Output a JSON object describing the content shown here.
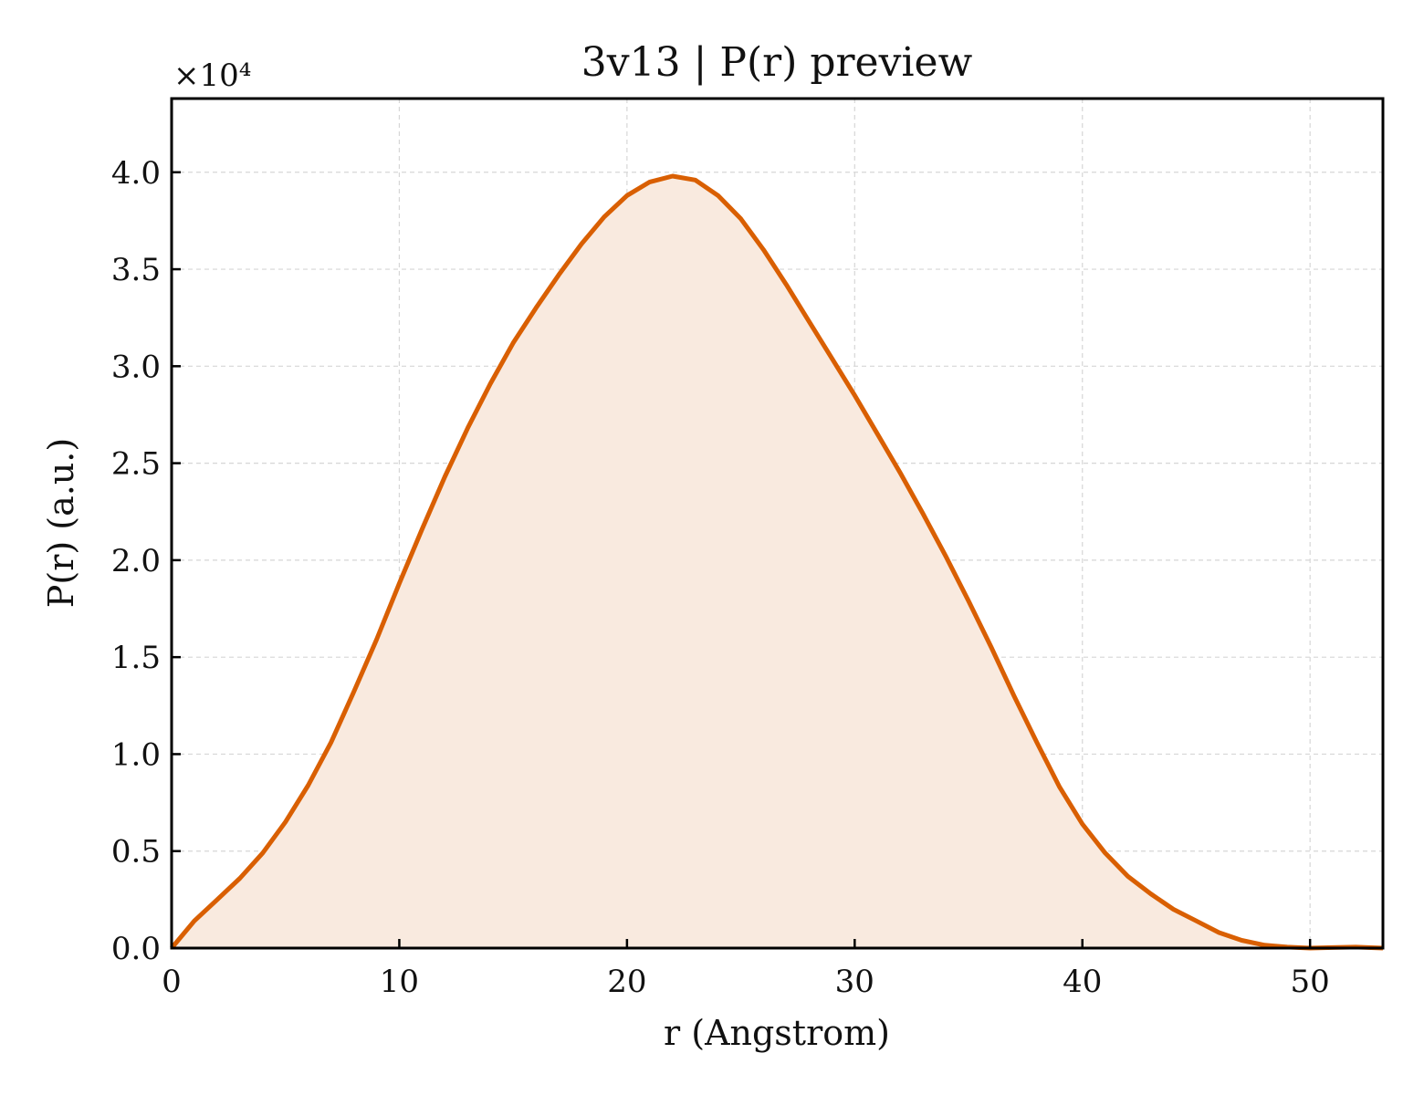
{
  "chart_data": {
    "type": "area",
    "title": "3v13 | P(r) preview",
    "xlabel": "r (Angstrom)",
    "ylabel": "P(r) (a.u.)",
    "y_multiplier_label": "×10⁴",
    "xlim": [
      0,
      53.2
    ],
    "ylim": [
      0,
      4.38
    ],
    "x_ticks": [
      0,
      10,
      20,
      30,
      40,
      50
    ],
    "x_tick_labels": [
      "0",
      "10",
      "20",
      "30",
      "40",
      "50"
    ],
    "y_ticks": [
      0,
      0.5,
      1.0,
      1.5,
      2.0,
      2.5,
      3.0,
      3.5,
      4.0
    ],
    "y_tick_labels": [
      "0.0",
      "0.5",
      "1.0",
      "1.5",
      "2.0",
      "2.5",
      "3.0",
      "3.5",
      "4.0"
    ],
    "grid": true,
    "line_color": "#d95f02",
    "fill_color": "#f9eadf",
    "series": [
      {
        "x": [
          0,
          1,
          2,
          3,
          4,
          5,
          6,
          7,
          8,
          9,
          10,
          11,
          12,
          13,
          14,
          15,
          16,
          17,
          18,
          19,
          20,
          21,
          22,
          23,
          24,
          25,
          26,
          27,
          28,
          29,
          30,
          31,
          32,
          33,
          34,
          35,
          36,
          37,
          38,
          39,
          40,
          41,
          42,
          43,
          44,
          45,
          46,
          47,
          48,
          49,
          50,
          51,
          52,
          53.2
        ],
        "y": [
          0.0,
          0.14,
          0.25,
          0.36,
          0.49,
          0.65,
          0.84,
          1.06,
          1.32,
          1.59,
          1.88,
          2.16,
          2.43,
          2.68,
          2.91,
          3.12,
          3.3,
          3.47,
          3.63,
          3.77,
          3.88,
          3.95,
          3.98,
          3.96,
          3.88,
          3.76,
          3.6,
          3.42,
          3.23,
          3.04,
          2.85,
          2.65,
          2.45,
          2.24,
          2.02,
          1.79,
          1.55,
          1.3,
          1.06,
          0.83,
          0.64,
          0.49,
          0.37,
          0.28,
          0.2,
          0.14,
          0.08,
          0.04,
          0.015,
          0.005,
          0.0,
          0.003,
          0.005,
          0.0
        ]
      }
    ]
  }
}
